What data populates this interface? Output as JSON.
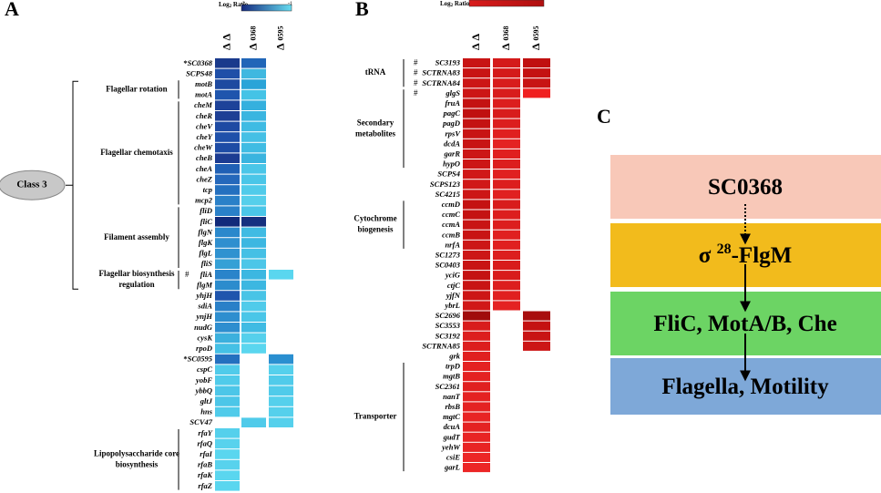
{
  "panels": [
    {
      "label": "A",
      "legend": {
        "title": "Log",
        "sub": "2",
        "rest": " Ratio",
        "min": "-2",
        "max": "-1",
        "colors": [
          "#14287e",
          "#66dcf0"
        ]
      },
      "columns": [
        {
          "tri": "Δ",
          "name": "Δ"
        },
        {
          "tri": "Δ",
          "name": "0368"
        },
        {
          "tri": "Δ",
          "name": "0595"
        }
      ],
      "rows": [
        {
          "gene": "SC0368",
          "mark": "*",
          "cells": [
            "#1a3a8c",
            "#2166b8",
            null
          ]
        },
        {
          "gene": "SCPS48",
          "cells": [
            "#1f4fa8",
            "#3fb8e0",
            null
          ]
        },
        {
          "gene": "motB",
          "cells": [
            "#1e4aa0",
            "#2aa4d8",
            null
          ]
        },
        {
          "gene": "motA",
          "cells": [
            "#1f55ad",
            "#44c3e6",
            null
          ]
        },
        {
          "gene": "cheM",
          "cells": [
            "#1d4299",
            "#35b0de",
            null
          ]
        },
        {
          "gene": "cheR",
          "cells": [
            "#1d3f95",
            "#3ab5e0",
            null
          ]
        },
        {
          "gene": "cheV",
          "cells": [
            "#1e4aa3",
            "#3fbbe3",
            null
          ]
        },
        {
          "gene": "cheY",
          "cells": [
            "#1f50aa",
            "#45c0e5",
            null
          ]
        },
        {
          "gene": "cheW",
          "cells": [
            "#1e4ca5",
            "#40bce3",
            null
          ]
        },
        {
          "gene": "cheB",
          "cells": [
            "#1c3c92",
            "#3ab4df",
            null
          ]
        },
        {
          "gene": "cheA",
          "cells": [
            "#2060b5",
            "#4ac6e8",
            null
          ]
        },
        {
          "gene": "cheZ",
          "cells": [
            "#2568bb",
            "#4ac6e8",
            null
          ]
        },
        {
          "gene": "tcp",
          "cells": [
            "#2470bf",
            "#50cbea",
            null
          ]
        },
        {
          "gene": "mcp2",
          "cells": [
            "#2a80c8",
            "#55cfeb",
            null
          ]
        },
        {
          "gene": "fliD",
          "cells": [
            "#2a80c8",
            "#4ac6e8",
            null
          ]
        },
        {
          "gene": "fliC",
          "cells": [
            "#122a7a",
            "#15307f",
            null
          ]
        },
        {
          "gene": "flgN",
          "cells": [
            "#2a88cc",
            "#40bbe3",
            null
          ]
        },
        {
          "gene": "flgK",
          "cells": [
            "#2f8fcf",
            "#3cb7e1",
            null
          ]
        },
        {
          "gene": "flgL",
          "cells": [
            "#2f92d0",
            "#45c0e5",
            null
          ]
        },
        {
          "gene": "fliS",
          "cells": [
            "#35a0d6",
            "#4cc6e8",
            null
          ]
        },
        {
          "gene": "fliA",
          "hash": "#",
          "cells": [
            "#2a84ca",
            "#3cb7e1",
            "#5ad6ef"
          ]
        },
        {
          "gene": "flgM",
          "cells": [
            "#2c8ccd",
            "#3cb7e1",
            null
          ]
        },
        {
          "gene": "yhjH",
          "cells": [
            "#1f55ad",
            "#48c4e6",
            null
          ]
        },
        {
          "gene": "sdiA",
          "cells": [
            "#2a80c8",
            "#50cbea",
            null
          ]
        },
        {
          "gene": "ynjH",
          "cells": [
            "#2e8ecf",
            "#4ac6e8",
            null
          ]
        },
        {
          "gene": "nudG",
          "cells": [
            "#2e8ecf",
            "#40bbe3",
            null
          ]
        },
        {
          "gene": "cysK",
          "cells": [
            "#3cb0dd",
            "#55d0ec",
            null
          ]
        },
        {
          "gene": "rpoD",
          "cells": [
            "#45c0e5",
            "#5ad6ef",
            null
          ]
        },
        {
          "gene": "SC0595",
          "mark": "*",
          "cells": [
            "#2470bf",
            null,
            "#2a8fd0"
          ]
        },
        {
          "gene": "cspC",
          "cells": [
            "#50cbea",
            null,
            "#55d0ec"
          ]
        },
        {
          "gene": "yobF",
          "cells": [
            "#50cbea",
            null,
            "#50cbea"
          ]
        },
        {
          "gene": "ybbQ",
          "cells": [
            "#4cc6e8",
            null,
            "#50cbea"
          ]
        },
        {
          "gene": "gltJ",
          "cells": [
            "#4cc6e8",
            null,
            "#55d0ec"
          ]
        },
        {
          "gene": "hns",
          "cells": [
            "#50cbea",
            null,
            "#55d0ec"
          ]
        },
        {
          "gene": "SCV47",
          "cells": [
            null,
            "#50cbea",
            "#55d0ec"
          ]
        },
        {
          "gene": "rfaY",
          "cells": [
            "#55d0ec",
            null,
            null
          ]
        },
        {
          "gene": "rfaQ",
          "cells": [
            "#58d2ed",
            null,
            null
          ]
        },
        {
          "gene": "rfaI",
          "cells": [
            "#5ad6ef",
            null,
            null
          ]
        },
        {
          "gene": "rfaB",
          "cells": [
            "#58d2ed",
            null,
            null
          ]
        },
        {
          "gene": "rfaK",
          "cells": [
            "#5ad6ef",
            null,
            null
          ]
        },
        {
          "gene": "rfaZ",
          "cells": [
            "#5ad6ef",
            null,
            null
          ]
        }
      ],
      "groups": [
        {
          "lines": [
            "Flagellar rotation"
          ],
          "from": 2,
          "to": 3
        },
        {
          "lines": [
            "Flagellar chemotaxis"
          ],
          "from": 4,
          "to": 13
        },
        {
          "lines": [
            "Filament assembly"
          ],
          "from": 14,
          "to": 19
        },
        {
          "lines": [
            "Flagellar biosynthesis",
            "regulation"
          ],
          "from": 20,
          "to": 21
        },
        {
          "lines": [
            "Lipopolysaccharide core",
            "biosynthesis"
          ],
          "from": 35,
          "to": 40
        }
      ],
      "class": {
        "label": "Class 3",
        "from": 2,
        "to": 21
      }
    },
    {
      "label": "B",
      "legend": {
        "title": "Log",
        "sub": "2",
        "rest": " Ratio",
        "colors": [
          "#d81c1c",
          "#b01010"
        ]
      },
      "columns": [
        {
          "tri": "Δ",
          "name": "Δ"
        },
        {
          "tri": "Δ",
          "name": "0368"
        },
        {
          "tri": "Δ",
          "name": "0595"
        }
      ],
      "rows": [
        {
          "gene": "SC3193",
          "hash": "#",
          "cells": [
            "#c81414",
            "#d41a1a",
            "#c01010"
          ]
        },
        {
          "gene": "SCTRNA83",
          "hash": "#",
          "cells": [
            "#c81414",
            "#d41a1a",
            "#c41212"
          ]
        },
        {
          "gene": "SCTRNA84",
          "hash": "#",
          "cells": [
            "#cc1616",
            "#d81c1c",
            "#c81414"
          ]
        },
        {
          "gene": "glgS",
          "hash": "#",
          "cells": [
            "#cc1616",
            "#d81c1c",
            "#f02020"
          ]
        },
        {
          "gene": "fruA",
          "cells": [
            "#c41212",
            "#dc1e1e",
            null
          ]
        },
        {
          "gene": "pagC",
          "cells": [
            "#c01010",
            "#d81c1c",
            null
          ]
        },
        {
          "gene": "pagD",
          "cells": [
            "#c41212",
            "#dc1e1e",
            null
          ]
        },
        {
          "gene": "rpsV",
          "cells": [
            "#c81414",
            "#e02020",
            null
          ]
        },
        {
          "gene": "dcdA",
          "cells": [
            "#c81414",
            "#e42222",
            null
          ]
        },
        {
          "gene": "garR",
          "cells": [
            "#cc1616",
            "#e02020",
            null
          ]
        },
        {
          "gene": "hypO",
          "cells": [
            "#cc1616",
            "#dc1e1e",
            null
          ]
        },
        {
          "gene": "SCPS4",
          "cells": [
            "#d01818",
            "#e02020",
            null
          ]
        },
        {
          "gene": "SCPS123",
          "cells": [
            "#d01818",
            "#dc1e1e",
            null
          ]
        },
        {
          "gene": "SC4215",
          "cells": [
            "#cc1616",
            "#e02020",
            null
          ]
        },
        {
          "gene": "ccmD",
          "cells": [
            "#c41212",
            "#d81c1c",
            null
          ]
        },
        {
          "gene": "ccmC",
          "cells": [
            "#c41212",
            "#dc1e1e",
            null
          ]
        },
        {
          "gene": "ccmA",
          "cells": [
            "#c81414",
            "#dc1e1e",
            null
          ]
        },
        {
          "gene": "ccmB",
          "cells": [
            "#c81414",
            "#e02020",
            null
          ]
        },
        {
          "gene": "nrfA",
          "cells": [
            "#cc1616",
            "#e02020",
            null
          ]
        },
        {
          "gene": "SC1273",
          "cells": [
            "#cc1616",
            "#dc1e1e",
            null
          ]
        },
        {
          "gene": "SC0403",
          "cells": [
            "#c81414",
            "#d81c1c",
            null
          ]
        },
        {
          "gene": "yciG",
          "cells": [
            "#c41212",
            "#d81c1c",
            null
          ]
        },
        {
          "gene": "ctjC",
          "cells": [
            "#c81414",
            "#dc1e1e",
            null
          ]
        },
        {
          "gene": "yjfN",
          "cells": [
            "#cc1616",
            "#e02020",
            null
          ]
        },
        {
          "gene": "ybrL",
          "cells": [
            "#d01818",
            "#e42222",
            null
          ]
        },
        {
          "gene": "SC2696",
          "cells": [
            "#a00c0c",
            null,
            "#a80e0e"
          ]
        },
        {
          "gene": "SC3553",
          "cells": [
            "#d81c1c",
            null,
            "#c41212"
          ]
        },
        {
          "gene": "SC3192",
          "cells": [
            "#dc1e1e",
            null,
            "#c81414"
          ]
        },
        {
          "gene": "SCTRNA85",
          "cells": [
            "#dc1e1e",
            null,
            "#cc1616"
          ]
        },
        {
          "gene": "grk",
          "cells": [
            "#e02020",
            null,
            null
          ]
        },
        {
          "gene": "trpD",
          "cells": [
            "#e42222",
            null,
            null
          ]
        },
        {
          "gene": "mgtB",
          "cells": [
            "#e42222",
            null,
            null
          ]
        },
        {
          "gene": "SC2361",
          "cells": [
            "#e02020",
            null,
            null
          ]
        },
        {
          "gene": "nanT",
          "cells": [
            "#e42222",
            null,
            null
          ]
        },
        {
          "gene": "rbsB",
          "cells": [
            "#e42222",
            null,
            null
          ]
        },
        {
          "gene": "mgtC",
          "cells": [
            "#e82424",
            null,
            null
          ]
        },
        {
          "gene": "dcuA",
          "cells": [
            "#e42222",
            null,
            null
          ]
        },
        {
          "gene": "gudT",
          "cells": [
            "#e82424",
            null,
            null
          ]
        },
        {
          "gene": "yehW",
          "cells": [
            "#e82424",
            null,
            null
          ]
        },
        {
          "gene": "csiE",
          "cells": [
            "#ec2626",
            null,
            null
          ]
        },
        {
          "gene": "garL",
          "cells": [
            "#ec2626",
            null,
            null
          ]
        }
      ],
      "groups": [
        {
          "lines": [
            "tRNA"
          ],
          "from": 0,
          "to": 2
        },
        {
          "lines": [
            "Secondary",
            "metabolites"
          ],
          "from": 3,
          "to": 10
        },
        {
          "lines": [
            "Cytochrome",
            "biogenesis"
          ],
          "from": 14,
          "to": 18
        },
        {
          "lines": [
            "Transporter"
          ],
          "from": 30,
          "to": 40
        }
      ]
    }
  ],
  "pathway": {
    "label": "C",
    "steps": [
      {
        "parts": [
          "SC0368"
        ],
        "color": "#f8c8b8"
      },
      {
        "parts": [
          "σ ",
          "28",
          "-FlgM"
        ],
        "color": "#f2bb1c"
      },
      {
        "parts": [
          "FliC, MotA/B, Che"
        ],
        "color": "#6cd464"
      },
      {
        "parts": [
          "Flagella, Motility"
        ],
        "color": "#7ea8d8"
      }
    ],
    "arrows": [
      "dotted",
      "solid",
      "solid"
    ]
  }
}
